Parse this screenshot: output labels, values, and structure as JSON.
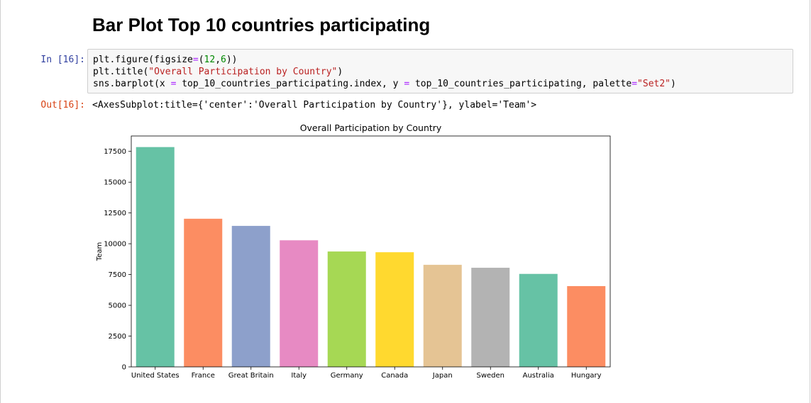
{
  "heading": "Bar Plot Top 10 countries participating",
  "cell": {
    "in_prompt": "In [16]:",
    "out_prompt": "Out[16]:",
    "code": {
      "line1": {
        "a": "plt.figure(figsize",
        "op": "=",
        "b": "(",
        "n1": "12",
        "c": ",",
        "n2": "6",
        "d": "))"
      },
      "line2": {
        "a": "plt.title(",
        "s": "\"Overall Participation by Country\"",
        "b": ")"
      },
      "line3": {
        "a": "sns.barplot(x ",
        "op1": "=",
        "b": " top_10_countries_participating.index, y ",
        "op2": "=",
        "c": " top_10_countries_participating, palette",
        "op3": "=",
        "s": "\"Set2\"",
        "d": ")"
      }
    },
    "output_text": "<AxesSubplot:title={'center':'Overall Participation by Country'}, ylabel='Team'>"
  },
  "colors": {
    "in_prompt": "#303f9f",
    "out_prompt": "#d84315",
    "palette_set2": [
      "#66c2a5",
      "#fc8d62",
      "#8da0cb",
      "#e78ac3",
      "#a6d854",
      "#ffd92f",
      "#e5c494",
      "#b3b3b3"
    ]
  },
  "chart_data": {
    "type": "bar",
    "title": "Overall Participation by Country",
    "xlabel": "",
    "ylabel": "Team",
    "categories": [
      "United States",
      "France",
      "Great Britain",
      "Italy",
      "Germany",
      "Canada",
      "Japan",
      "Sweden",
      "Australia",
      "Hungary"
    ],
    "values": [
      17850,
      12030,
      11450,
      10280,
      9370,
      9310,
      8290,
      8050,
      7550,
      6560
    ],
    "ylim": [
      0,
      18750
    ],
    "yticks": [
      0,
      2500,
      5000,
      7500,
      10000,
      12500,
      15000,
      17500
    ],
    "grid": false,
    "palette": "Set2"
  }
}
